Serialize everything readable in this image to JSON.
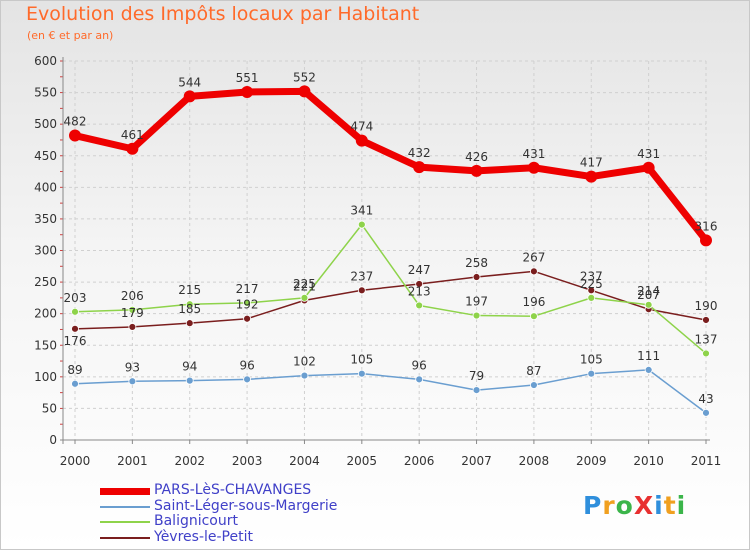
{
  "title": "Evolution des Impôts locaux par Habitant",
  "subtitle": "(en € et par an)",
  "logo": {
    "text": "ProXiti",
    "colors": [
      "#2f8fdc",
      "#f0a020",
      "#3bb54a",
      "#e83030",
      "#2f8fdc",
      "#f0a020",
      "#3bb54a"
    ]
  },
  "chart_data": {
    "type": "line",
    "title": "Evolution des Impôts locaux par Habitant",
    "subtitle": "(en € et par an)",
    "xlabel": "",
    "ylabel": "",
    "categories": [
      "2000",
      "2001",
      "2002",
      "2003",
      "2004",
      "2005",
      "2006",
      "2007",
      "2008",
      "2009",
      "2010",
      "2011"
    ],
    "ylim": [
      0,
      600
    ],
    "yticks": [
      "0",
      "50",
      "100",
      "150",
      "200",
      "250",
      "300",
      "350",
      "400",
      "450",
      "500",
      "550",
      "600"
    ],
    "grid": true,
    "legend_position": "bottom-left",
    "series": [
      {
        "name": "PARS-LèS-CHAVANGES",
        "color": "#ee0000",
        "values": [
          482,
          461,
          544,
          551,
          552,
          474,
          432,
          426,
          431,
          417,
          431,
          316
        ],
        "labels": [
          "482",
          "461",
          "544",
          "551",
          "552",
          "474",
          "432",
          "426",
          "431",
          "417",
          "431",
          "316"
        ]
      },
      {
        "name": "Saint-Léger-sous-Margerie",
        "color": "#6a9ed0",
        "values": [
          89,
          93,
          94,
          96,
          102,
          105,
          96,
          79,
          87,
          105,
          111,
          43
        ],
        "labels": [
          "89",
          "93",
          "94",
          "96",
          "102",
          "105",
          "96",
          "79",
          "87",
          "105",
          "111",
          "43"
        ]
      },
      {
        "name": "Balignicourt",
        "color": "#8ed34a",
        "values": [
          203,
          206,
          215,
          217,
          225,
          341,
          213,
          197,
          196,
          225,
          214,
          137
        ],
        "labels": [
          "203",
          "206",
          "215",
          "217",
          "225",
          "341",
          "213",
          "197",
          "196",
          "225",
          "214",
          "137"
        ]
      },
      {
        "name": "Yèvres-le-Petit",
        "color": "#7a1e1e",
        "values": [
          176,
          179,
          185,
          192,
          221,
          237,
          247,
          258,
          267,
          237,
          207,
          190
        ],
        "labels": [
          "176",
          "179",
          "185",
          "192",
          "221",
          "237",
          "247",
          "258",
          "267",
          "237",
          "207",
          "190"
        ]
      }
    ]
  }
}
